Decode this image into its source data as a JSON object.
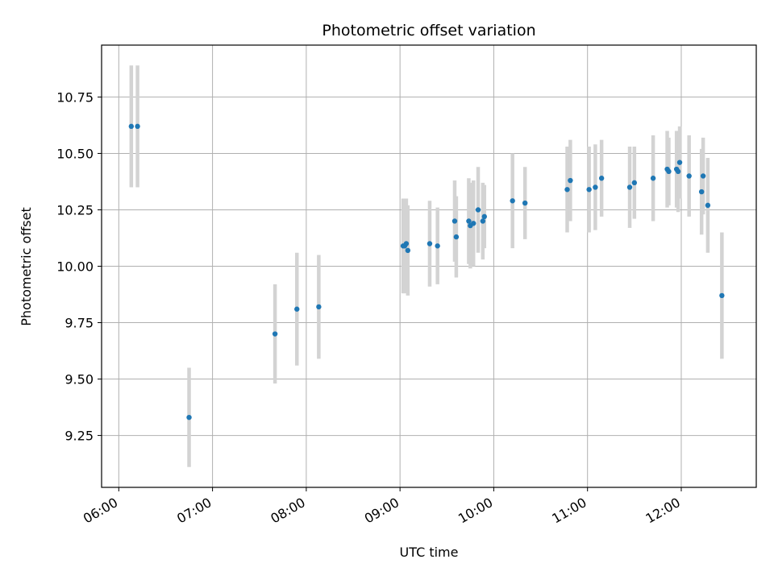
{
  "chart_data": {
    "type": "scatter",
    "title": "Photometric offset variation",
    "xlabel": "UTC time",
    "ylabel": "Photometric offset",
    "x_ticks": [
      "06:00",
      "07:00",
      "08:00",
      "09:00",
      "10:00",
      "11:00",
      "12:00"
    ],
    "y_ticks": [
      "9.25",
      "9.50",
      "9.75",
      "10.00",
      "10.25",
      "10.50",
      "10.75"
    ],
    "xlim": [
      "05:49",
      "12:48"
    ],
    "ylim": [
      9.02,
      10.98
    ],
    "grid": true,
    "colors": {
      "point": "#1f77b4",
      "errorbar": "#d3d3d3",
      "grid": "#b0b0b0"
    },
    "points": [
      {
        "x": "06:08",
        "y": 10.62,
        "err": 0.27
      },
      {
        "x": "06:12",
        "y": 10.62,
        "err": 0.27
      },
      {
        "x": "06:45",
        "y": 9.33,
        "err": 0.22
      },
      {
        "x": "07:40",
        "y": 9.7,
        "err": 0.22
      },
      {
        "x": "07:54",
        "y": 9.81,
        "err": 0.25
      },
      {
        "x": "08:08",
        "y": 9.82,
        "err": 0.23
      },
      {
        "x": "09:02",
        "y": 10.09,
        "err": 0.21
      },
      {
        "x": "09:03",
        "y": 10.09,
        "err": 0.21
      },
      {
        "x": "09:04",
        "y": 10.1,
        "err": 0.2
      },
      {
        "x": "09:05",
        "y": 10.07,
        "err": 0.2
      },
      {
        "x": "09:19",
        "y": 10.1,
        "err": 0.19
      },
      {
        "x": "09:24",
        "y": 10.09,
        "err": 0.17
      },
      {
        "x": "09:35",
        "y": 10.2,
        "err": 0.18
      },
      {
        "x": "09:36",
        "y": 10.13,
        "err": 0.18
      },
      {
        "x": "09:44",
        "y": 10.2,
        "err": 0.19
      },
      {
        "x": "09:45",
        "y": 10.18,
        "err": 0.19
      },
      {
        "x": "09:47",
        "y": 10.19,
        "err": 0.19
      },
      {
        "x": "09:50",
        "y": 10.25,
        "err": 0.19
      },
      {
        "x": "09:53",
        "y": 10.2,
        "err": 0.17
      },
      {
        "x": "09:54",
        "y": 10.22,
        "err": 0.14
      },
      {
        "x": "10:12",
        "y": 10.29,
        "err": 0.21
      },
      {
        "x": "10:20",
        "y": 10.28,
        "err": 0.16
      },
      {
        "x": "10:47",
        "y": 10.34,
        "err": 0.19
      },
      {
        "x": "10:49",
        "y": 10.38,
        "err": 0.18
      },
      {
        "x": "11:01",
        "y": 10.34,
        "err": 0.19
      },
      {
        "x": "11:05",
        "y": 10.35,
        "err": 0.19
      },
      {
        "x": "11:09",
        "y": 10.39,
        "err": 0.17
      },
      {
        "x": "11:27",
        "y": 10.35,
        "err": 0.18
      },
      {
        "x": "11:30",
        "y": 10.37,
        "err": 0.16
      },
      {
        "x": "11:42",
        "y": 10.39,
        "err": 0.19
      },
      {
        "x": "11:51",
        "y": 10.43,
        "err": 0.17
      },
      {
        "x": "11:52",
        "y": 10.42,
        "err": 0.15
      },
      {
        "x": "11:57",
        "y": 10.43,
        "err": 0.17
      },
      {
        "x": "11:58",
        "y": 10.42,
        "err": 0.18
      },
      {
        "x": "11:59",
        "y": 10.46,
        "err": 0.16
      },
      {
        "x": "12:05",
        "y": 10.4,
        "err": 0.18
      },
      {
        "x": "12:13",
        "y": 10.33,
        "err": 0.19
      },
      {
        "x": "12:14",
        "y": 10.4,
        "err": 0.17
      },
      {
        "x": "12:17",
        "y": 10.27,
        "err": 0.21
      },
      {
        "x": "12:26",
        "y": 9.87,
        "err": 0.28
      }
    ]
  }
}
